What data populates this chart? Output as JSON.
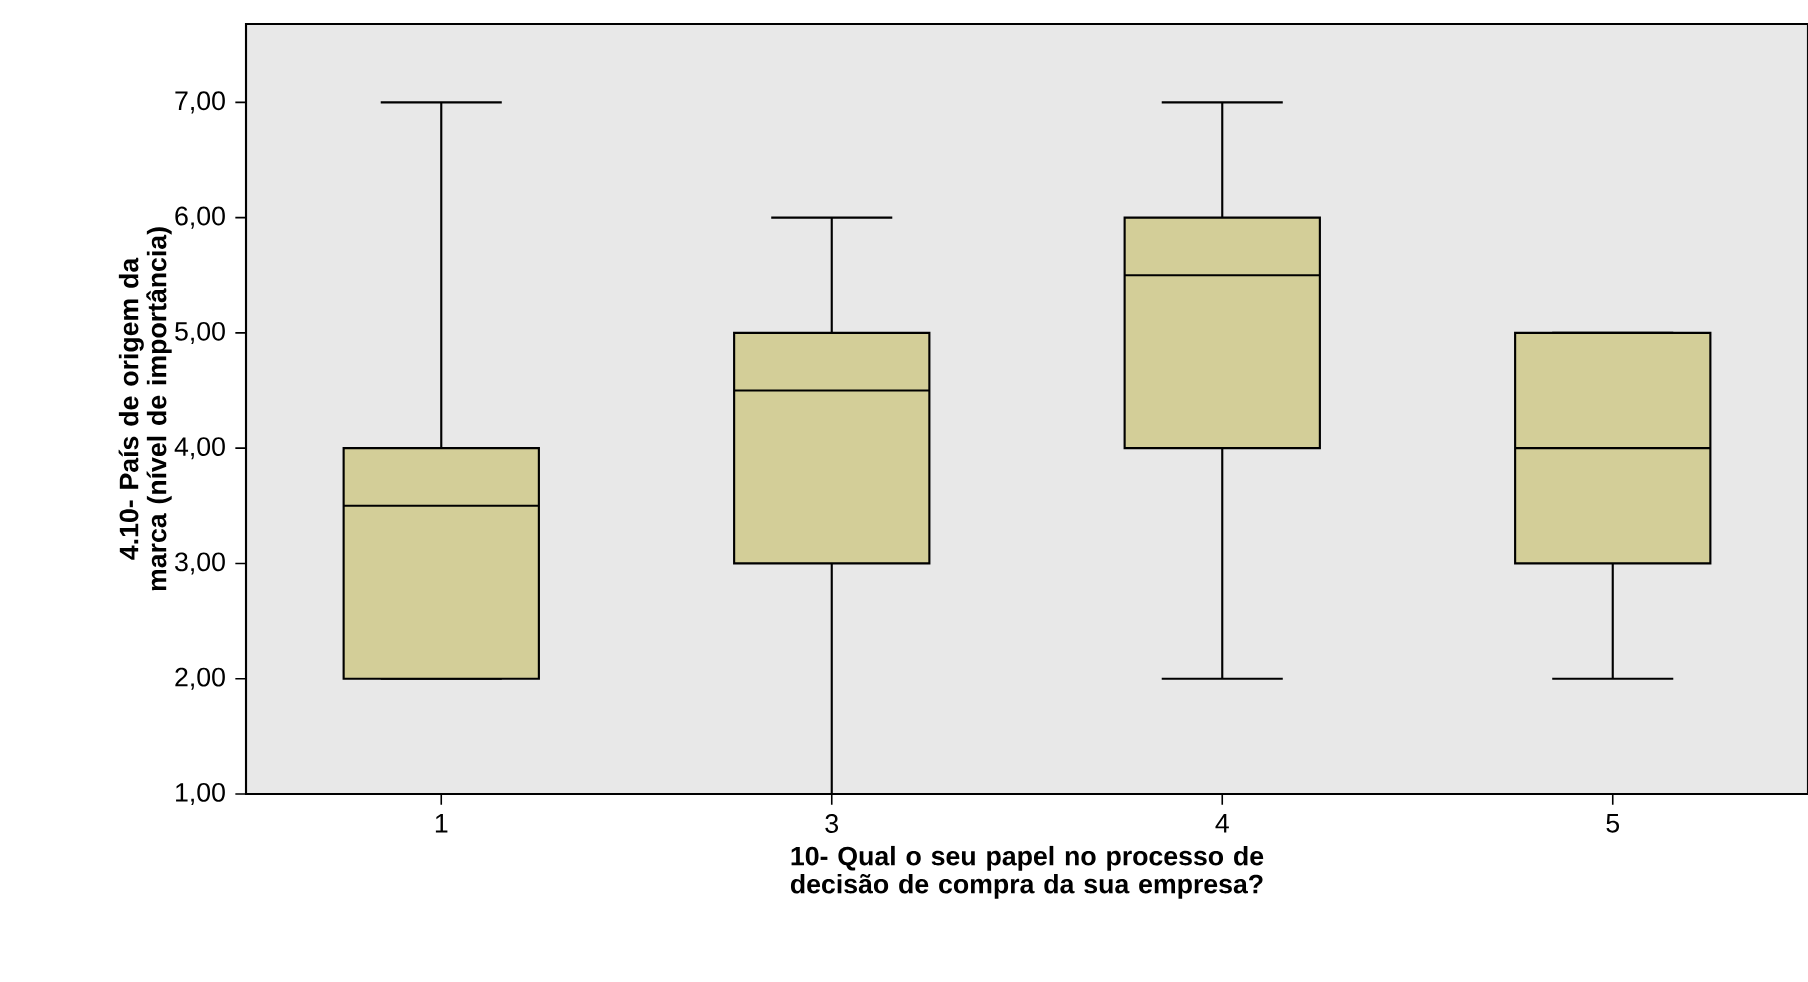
{
  "chart_data": {
    "type": "box",
    "xlabel": "10- Qual o seu papel no processo de decisão de compra da sua empresa?",
    "ylabel": "4.10- País de origem da marca (nível de importância)",
    "categories": [
      "1",
      "3",
      "4",
      "5"
    ],
    "color": "#d3ce98",
    "boxes": [
      {
        "low": 2,
        "q1": 2,
        "median": 3.5,
        "q3": 4,
        "high": 7
      },
      {
        "low": 1,
        "q1": 3,
        "median": 4.5,
        "q3": 5,
        "high": 6
      },
      {
        "low": 2,
        "q1": 4,
        "median": 5.5,
        "q3": 6,
        "high": 7
      },
      {
        "low": 2,
        "q1": 3,
        "median": 4,
        "q3": 5,
        "high": 5
      }
    ],
    "ylim": [
      1,
      7.68
    ],
    "yticks": [
      {
        "value": 1,
        "label": "1,00"
      },
      {
        "value": 2,
        "label": "2,00"
      },
      {
        "value": 3,
        "label": "3,00"
      },
      {
        "value": 4,
        "label": "4,00"
      },
      {
        "value": 5,
        "label": "5,00"
      },
      {
        "value": 6,
        "label": "6,00"
      },
      {
        "value": 7,
        "label": "7,00"
      }
    ],
    "grid": false
  }
}
